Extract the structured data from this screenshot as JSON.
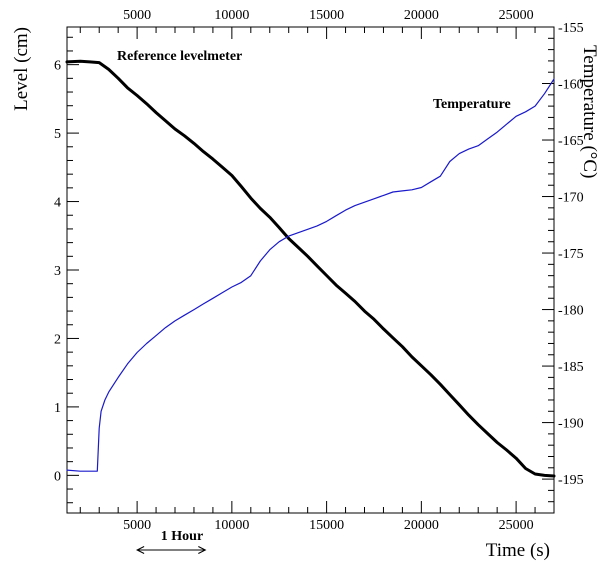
{
  "chart_data": {
    "type": "line",
    "title": "",
    "xlabel": "Time (s)",
    "ylabel_left": "Level (cm)",
    "ylabel_right": "Temperature (°C)",
    "xlim": [
      1300,
      27000
    ],
    "ylim_left": [
      -0.55,
      6.55
    ],
    "ylim_right": [
      -198,
      -155
    ],
    "x_ticks": [
      "5000",
      "10000",
      "15000",
      "20000",
      "25000"
    ],
    "y_left_ticks": [
      "0",
      "1",
      "2",
      "3",
      "4",
      "5",
      "6"
    ],
    "y_right_ticks": [
      "-155",
      "-160",
      "-165",
      "-170",
      "-175",
      "-180",
      "-185",
      "-190",
      "-195"
    ],
    "annotations": {
      "level": "Reference levelmeter",
      "temperature": "Temperature",
      "scale_bar": "1 Hour"
    },
    "scale_bar_range": [
      5000,
      8600
    ],
    "series": [
      {
        "name": "Reference levelmeter",
        "axis": "left",
        "color": "#000000",
        "x": [
          1300,
          2000,
          2500,
          3000,
          3500,
          4000,
          4500,
          5000,
          5500,
          6000,
          6500,
          7000,
          7500,
          8000,
          8500,
          9000,
          9500,
          10000,
          10500,
          11000,
          11500,
          12000,
          12500,
          13000,
          13500,
          14000,
          14500,
          15000,
          15500,
          16000,
          16500,
          17000,
          17500,
          18000,
          18500,
          19000,
          19500,
          20000,
          20500,
          21000,
          21500,
          22000,
          22500,
          23000,
          23500,
          24000,
          24500,
          25000,
          25500,
          26000,
          26500,
          27000
        ],
        "values": [
          6.04,
          6.05,
          6.04,
          6.03,
          5.93,
          5.8,
          5.66,
          5.55,
          5.43,
          5.3,
          5.18,
          5.06,
          4.96,
          4.85,
          4.73,
          4.62,
          4.5,
          4.38,
          4.22,
          4.05,
          3.9,
          3.77,
          3.62,
          3.46,
          3.33,
          3.2,
          3.06,
          2.92,
          2.78,
          2.66,
          2.54,
          2.4,
          2.28,
          2.14,
          2.01,
          1.88,
          1.73,
          1.6,
          1.47,
          1.33,
          1.18,
          1.03,
          0.88,
          0.74,
          0.61,
          0.48,
          0.37,
          0.25,
          0.1,
          0.02,
          0.0,
          -0.01
        ]
      },
      {
        "name": "Temperature",
        "axis": "right",
        "color": "#1a1acc",
        "x": [
          1300,
          2000,
          2500,
          2900,
          3000,
          3100,
          3300,
          3500,
          4000,
          4500,
          5000,
          5500,
          6000,
          6500,
          7000,
          7500,
          8000,
          8500,
          9000,
          9500,
          10000,
          10500,
          11000,
          11500,
          12000,
          12500,
          13000,
          13500,
          14000,
          14500,
          15000,
          15500,
          16000,
          16500,
          17000,
          17500,
          18000,
          18500,
          19000,
          19500,
          20000,
          20500,
          21000,
          21500,
          22000,
          22500,
          23000,
          23500,
          24000,
          24500,
          25000,
          25500,
          26000,
          26500,
          27000
        ],
        "values": [
          -194.2,
          -194.3,
          -194.3,
          -194.3,
          -190.5,
          -189.0,
          -188.0,
          -187.3,
          -186.0,
          -184.8,
          -183.8,
          -183.0,
          -182.3,
          -181.6,
          -181.0,
          -180.5,
          -180.0,
          -179.5,
          -179.0,
          -178.5,
          -178.0,
          -177.6,
          -177.0,
          -175.7,
          -174.7,
          -174.0,
          -173.5,
          -173.2,
          -172.9,
          -172.6,
          -172.2,
          -171.7,
          -171.2,
          -170.8,
          -170.5,
          -170.2,
          -169.9,
          -169.6,
          -169.5,
          -169.4,
          -169.2,
          -168.7,
          -168.2,
          -166.9,
          -166.2,
          -165.8,
          -165.5,
          -164.9,
          -164.3,
          -163.6,
          -162.9,
          -162.5,
          -162.0,
          -160.9,
          -159.6
        ]
      }
    ]
  }
}
